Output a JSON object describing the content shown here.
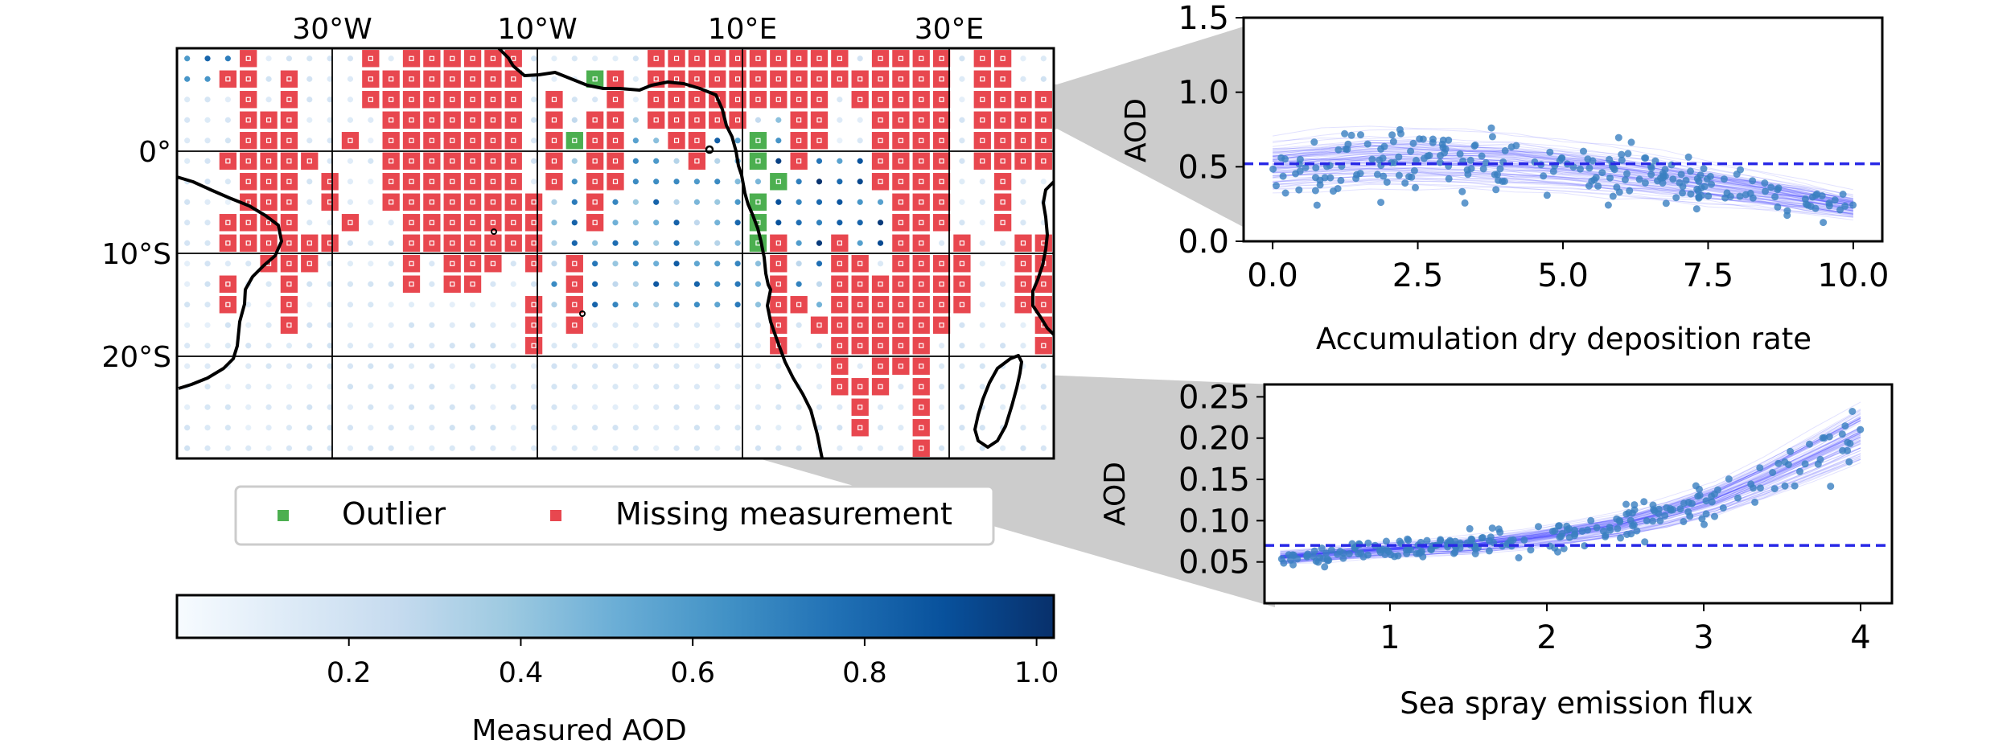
{
  "chart_data": [
    {
      "type": "heatmap",
      "x_tick_labels": [
        "30°W",
        "10°W",
        "10°E",
        "30°E"
      ],
      "y_tick_labels": [
        "0°",
        "10°S",
        "20°S"
      ],
      "legend": {
        "placement": "bottom",
        "entries": [
          {
            "label": "Outlier",
            "color": "#4caf50"
          },
          {
            "label": "Missing measurement",
            "color": "#e8474f"
          }
        ]
      },
      "colorbar": {
        "label": "Measured AOD",
        "ticks": [
          "0.2",
          "0.4",
          "0.6",
          "0.8",
          "1.0"
        ],
        "range": [
          0.0,
          1.02
        ],
        "colormap": "Blues"
      },
      "grid": true
    },
    {
      "type": "scatter",
      "xlabel": "Accumulation dry deposition rate",
      "ylabel": "AOD",
      "x_tick_labels": [
        "0.0",
        "2.5",
        "5.0",
        "7.5",
        "10.0"
      ],
      "y_tick_labels": [
        "0.0",
        "0.5",
        "1.0",
        "1.5"
      ],
      "xlim": [
        -0.5,
        10.5
      ],
      "ylim": [
        0.0,
        1.5
      ],
      "reference_line": 0.52,
      "trend": {
        "x": [
          0,
          2,
          4,
          6,
          8,
          10
        ],
        "y": [
          0.5,
          0.55,
          0.52,
          0.45,
          0.35,
          0.23
        ]
      },
      "point_color": "#3a7fc1",
      "line_color": "#1c1cff"
    },
    {
      "type": "scatter",
      "xlabel": "Sea spray emission flux",
      "ylabel": "AOD",
      "x_tick_labels": [
        "1",
        "2",
        "3",
        "4"
      ],
      "y_tick_labels": [
        "0.05",
        "0.10",
        "0.15",
        "0.20",
        "0.25"
      ],
      "xlim": [
        0.2,
        4.2
      ],
      "ylim": [
        0.0,
        0.265
      ],
      "reference_line": 0.07,
      "trend": {
        "x": [
          0.3,
          1,
          1.5,
          2,
          2.5,
          3,
          3.5,
          4
        ],
        "y": [
          0.055,
          0.065,
          0.07,
          0.08,
          0.095,
          0.12,
          0.16,
          0.205
        ]
      },
      "point_color": "#3a7fc1",
      "line_color": "#1c1cff"
    }
  ]
}
